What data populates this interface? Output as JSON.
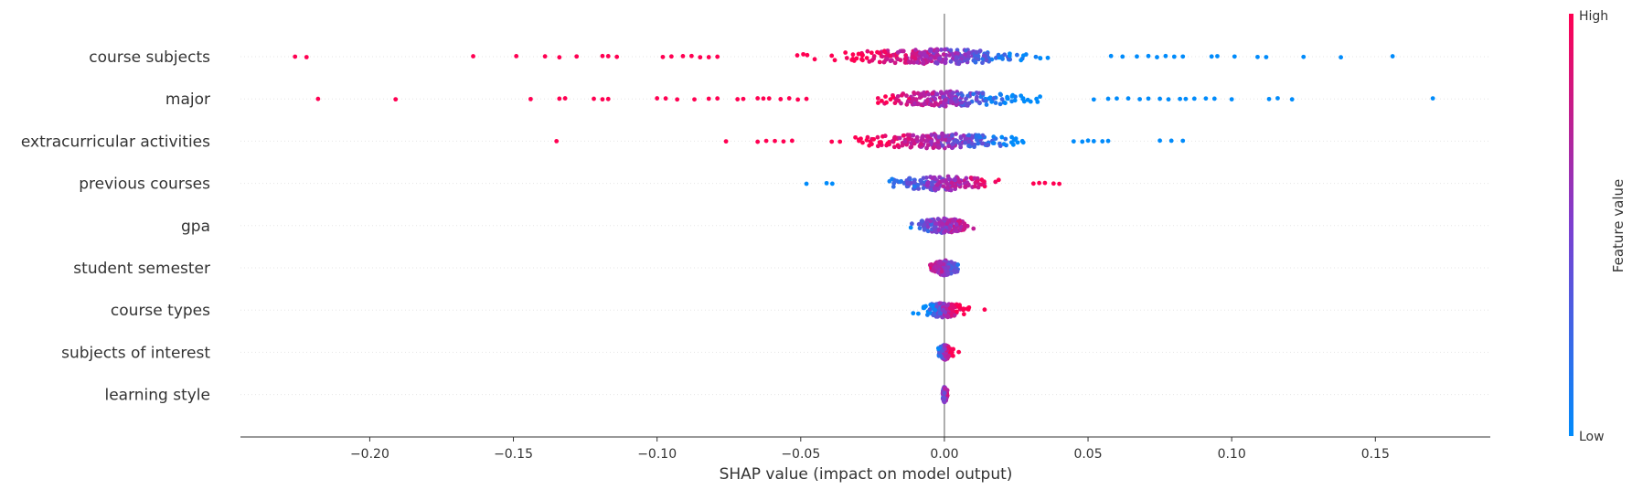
{
  "chart_data": {
    "type": "scatter",
    "xlabel": "SHAP value (impact on model output)",
    "xlim": [
      -0.245,
      0.19
    ],
    "x_ticks": [
      -0.2,
      -0.15,
      -0.1,
      -0.05,
      0.0,
      0.05,
      0.1,
      0.15
    ],
    "x_tick_labels": [
      "−0.20",
      "−0.15",
      "−0.10",
      "−0.05",
      "0.00",
      "0.05",
      "0.10",
      "0.15"
    ],
    "features": [
      {
        "name": "course subjects",
        "min": -0.226,
        "max": 0.156,
        "dense_left": -0.075,
        "dense_right": 0.052,
        "core": 0.025,
        "high_side": "left",
        "outliers_high": [
          -0.226,
          -0.222,
          -0.164,
          -0.149,
          -0.139,
          -0.134,
          -0.128,
          -0.119,
          -0.117,
          -0.114,
          -0.098,
          -0.095,
          -0.091,
          -0.088,
          -0.085,
          -0.082,
          -0.079
        ],
        "outliers_low": [
          0.058,
          0.062,
          0.067,
          0.071,
          0.074,
          0.077,
          0.08,
          0.083,
          0.093,
          0.095,
          0.101,
          0.109,
          0.112,
          0.125,
          0.138,
          0.156
        ]
      },
      {
        "name": "major",
        "min": -0.218,
        "max": 0.17,
        "dense_left": -0.045,
        "dense_right": 0.05,
        "core": 0.02,
        "high_side": "left",
        "outliers_high": [
          -0.218,
          -0.191,
          -0.144,
          -0.134,
          -0.132,
          -0.122,
          -0.119,
          -0.117,
          -0.1,
          -0.097,
          -0.093,
          -0.087,
          -0.082,
          -0.079,
          -0.072,
          -0.07,
          -0.065,
          -0.063,
          -0.061,
          -0.057,
          -0.054,
          -0.051,
          -0.048
        ],
        "outliers_low": [
          0.052,
          0.057,
          0.06,
          0.064,
          0.068,
          0.071,
          0.075,
          0.078,
          0.082,
          0.084,
          0.087,
          0.091,
          0.094,
          0.1,
          0.113,
          0.116,
          0.121,
          0.17
        ]
      },
      {
        "name": "extracurricular activities",
        "min": -0.135,
        "max": 0.083,
        "dense_left": -0.06,
        "dense_right": 0.042,
        "core": 0.022,
        "high_side": "left",
        "outliers_high": [
          -0.135,
          -0.076,
          -0.065,
          -0.062,
          -0.059,
          -0.056,
          -0.053
        ],
        "outliers_low": [
          0.045,
          0.048,
          0.05,
          0.052,
          0.055,
          0.057,
          0.075,
          0.079,
          0.083
        ]
      },
      {
        "name": "previous courses",
        "min": -0.048,
        "max": 0.04,
        "dense_left": -0.036,
        "dense_right": 0.03,
        "core": 0.02,
        "high_side": "right",
        "outliers_high": [
          0.031,
          0.033,
          0.035,
          0.038,
          0.04
        ],
        "outliers_low": [
          -0.048,
          -0.041,
          -0.039
        ]
      },
      {
        "name": "gpa",
        "min": -0.017,
        "max": 0.016,
        "dense_left": -0.017,
        "dense_right": 0.016,
        "core": 0.013,
        "high_side": "right",
        "outliers_high": [],
        "outliers_low": []
      },
      {
        "name": "student semester",
        "min": -0.008,
        "max": 0.009,
        "dense_left": -0.008,
        "dense_right": 0.009,
        "core": 0.008,
        "high_side": "left",
        "outliers_high": [],
        "outliers_low": []
      },
      {
        "name": "course types",
        "min": -0.016,
        "max": 0.014,
        "dense_left": -0.016,
        "dense_right": 0.013,
        "core": 0.005,
        "high_side": "right",
        "outliers_high": [
          0.014
        ],
        "outliers_low": []
      },
      {
        "name": "subjects of interest",
        "min": -0.004,
        "max": 0.005,
        "dense_left": -0.004,
        "dense_right": 0.005,
        "core": 0.002,
        "high_side": "right",
        "outliers_high": [
          0.005
        ],
        "outliers_low": []
      },
      {
        "name": "learning style",
        "min": -0.001,
        "max": 0.002,
        "dense_left": -0.001,
        "dense_right": 0.002,
        "core": 0.002,
        "high_side": "right",
        "outliers_high": [],
        "outliers_low": []
      }
    ],
    "colorbar": {
      "label": "Feature value",
      "high_label": "High",
      "low_label": "Low"
    },
    "colors": {
      "high": "#ff0052",
      "low": "#008bfb",
      "mid": "#9a2fc0",
      "zero_line": "#999999",
      "axis": "#333333",
      "grid": "#e6e6e6"
    },
    "grid": "horizontal-dotted"
  }
}
